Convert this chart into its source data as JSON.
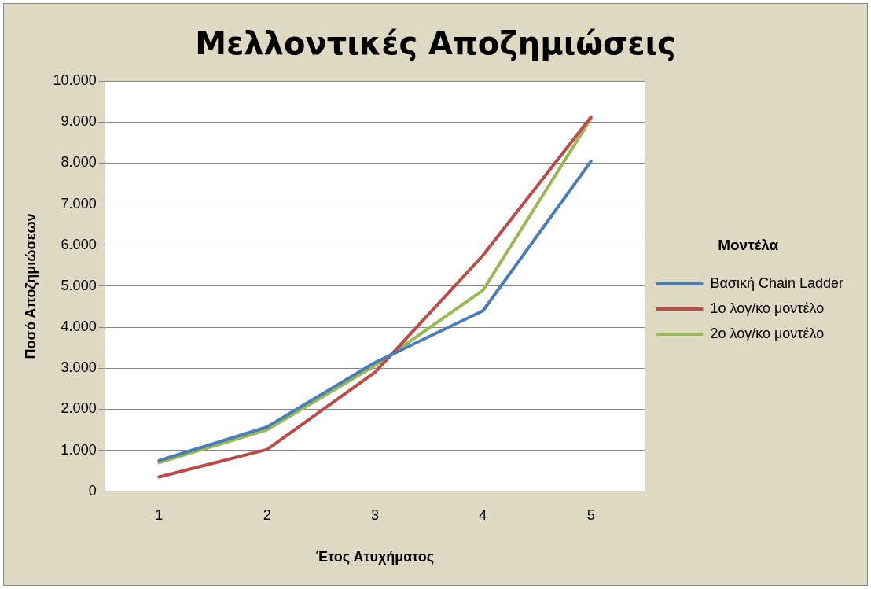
{
  "chart_data": {
    "type": "line",
    "title": "Μελλοντικές Αποζημιώσεις",
    "xlabel": "Έτος Ατυχήματος",
    "ylabel": "Ποσό Αποζημιώσεων",
    "legend_title": "Μοντέλα",
    "categories": [
      "1",
      "2",
      "3",
      "4",
      "5"
    ],
    "series": [
      {
        "name": "Βασική Chain Ladder",
        "color": "#4a7ebb",
        "values": [
          750,
          1570,
          3140,
          4400,
          8040
        ]
      },
      {
        "name": "1ο λογ/κο μοντέλο",
        "color": "#be4b48",
        "values": [
          350,
          1020,
          2900,
          5750,
          9120
        ]
      },
      {
        "name": "2ο λογ/κο μοντέλο",
        "color": "#98b954",
        "values": [
          700,
          1500,
          3060,
          4900,
          9080
        ]
      }
    ],
    "ylim": [
      0,
      10000
    ],
    "yticks": [
      0,
      {
        "value": 1000,
        "label": "1.000"
      },
      {
        "value": 2000,
        "label": "2.000"
      },
      {
        "value": 3000,
        "label": "3.000"
      },
      {
        "value": 4000,
        "label": "4.000"
      },
      {
        "value": 5000,
        "label": "5.000"
      },
      {
        "value": 6000,
        "label": "6.000"
      },
      {
        "value": 7000,
        "label": "7.000"
      },
      {
        "value": 8000,
        "label": "8.000"
      },
      {
        "value": 9000,
        "label": "9.000"
      },
      {
        "value": 10000,
        "label": "10.000"
      }
    ],
    "grid": "y",
    "legend": "right",
    "marker": "none",
    "line_style": "solid"
  }
}
